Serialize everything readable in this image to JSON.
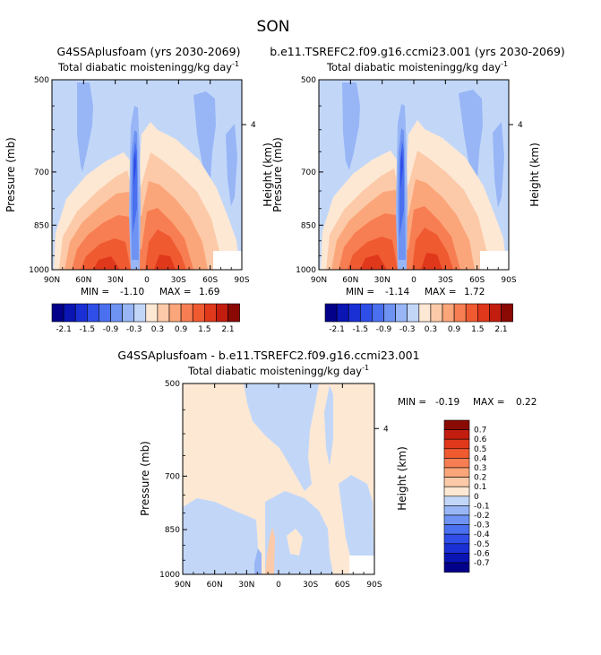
{
  "page_title": "SON",
  "chart_data": [
    {
      "type": "heatmap",
      "title": "G4SSAplusfoam (yrs 2030-2069)",
      "subtitle": "Total diabatic moistening",
      "units": "g/kg day",
      "units_exp": "-1",
      "ylabel": "Pressure (mb)",
      "ylabel_right": "Height (km)",
      "x_ticks": [
        "90N",
        "60N",
        "30N",
        "0",
        "30S",
        "60S",
        "90S"
      ],
      "y_ticks": [
        "500",
        "700",
        "850",
        "1000"
      ],
      "y_right_ticks": [
        "4"
      ],
      "ylim": [
        1000,
        500
      ],
      "min_label": "MIN =",
      "min_value": "-1.10",
      "max_label": "MAX =",
      "max_value": "1.69",
      "legend_placement": "bottom",
      "levels": [
        -2.1,
        -1.8,
        -1.5,
        -1.2,
        -0.9,
        -0.6,
        -0.3,
        0,
        0.3,
        0.6,
        0.9,
        1.2,
        1.5,
        1.8,
        2.1
      ],
      "legend_labels": [
        "-2.1",
        "-1.5",
        "-0.9",
        "-0.3",
        "0.3",
        "0.9",
        "1.5",
        "2.1"
      ],
      "colors": [
        "#03008a",
        "#0a15b4",
        "#1a30d4",
        "#2f4ee8",
        "#4a70ef",
        "#6e93f3",
        "#98b6f6",
        "#c2d7f8",
        "#fde8d4",
        "#fccaa8",
        "#fba67a",
        "#f77e52",
        "#f05a31",
        "#e0381b",
        "#c21d0f",
        "#8a0a03"
      ]
    },
    {
      "type": "heatmap",
      "title": "b.e11.TSREFC2.f09.g16.ccmi23.001 (yrs 2030-2069)",
      "subtitle": "Total diabatic moistening",
      "units": "g/kg day",
      "units_exp": "-1",
      "ylabel": "Pressure (mb)",
      "ylabel_right": "Height (km)",
      "x_ticks": [
        "90N",
        "60N",
        "30N",
        "0",
        "30S",
        "60S",
        "90S"
      ],
      "y_ticks": [
        "500",
        "700",
        "850",
        "1000"
      ],
      "y_right_ticks": [
        "4"
      ],
      "ylim": [
        1000,
        500
      ],
      "min_label": "MIN =",
      "min_value": "-1.14",
      "max_label": "MAX =",
      "max_value": "1.72",
      "legend_placement": "bottom",
      "levels": [
        -2.1,
        -1.8,
        -1.5,
        -1.2,
        -0.9,
        -0.6,
        -0.3,
        0,
        0.3,
        0.6,
        0.9,
        1.2,
        1.5,
        1.8,
        2.1
      ],
      "legend_labels": [
        "-2.1",
        "-1.5",
        "-0.9",
        "-0.3",
        "0.3",
        "0.9",
        "1.5",
        "2.1"
      ],
      "colors": [
        "#03008a",
        "#0a15b4",
        "#1a30d4",
        "#2f4ee8",
        "#4a70ef",
        "#6e93f3",
        "#98b6f6",
        "#c2d7f8",
        "#fde8d4",
        "#fccaa8",
        "#fba67a",
        "#f77e52",
        "#f05a31",
        "#e0381b",
        "#c21d0f",
        "#8a0a03"
      ]
    },
    {
      "type": "heatmap",
      "title": "G4SSAplusfoam - b.e11.TSREFC2.f09.g16.ccmi23.001",
      "subtitle": "Total diabatic moistening",
      "units": "g/kg day",
      "units_exp": "-1",
      "ylabel": "Pressure (mb)",
      "ylabel_right": "Height (km)",
      "x_ticks": [
        "90N",
        "60N",
        "30N",
        "0",
        "30S",
        "60S",
        "90S"
      ],
      "y_ticks": [
        "500",
        "700",
        "850",
        "1000"
      ],
      "y_right_ticks": [
        "4"
      ],
      "ylim": [
        1000,
        500
      ],
      "min_label": "MIN =",
      "min_value": "-0.19",
      "max_label": "MAX =",
      "max_value": "0.22",
      "legend_placement": "right",
      "legend_labels": [
        "0.7",
        "0.6",
        "0.5",
        "0.4",
        "0.3",
        "0.2",
        "0.1",
        "0",
        "-0.1",
        "-0.2",
        "-0.3",
        "-0.4",
        "-0.5",
        "-0.6",
        "-0.7"
      ],
      "colors": [
        "#8a0a03",
        "#c21d0f",
        "#e0381b",
        "#f05a31",
        "#f77e52",
        "#fba67a",
        "#fccaa8",
        "#fde8d4",
        "#c2d7f8",
        "#98b6f6",
        "#6e93f3",
        "#4a70ef",
        "#2f4ee8",
        "#1a30d4",
        "#0a15b4",
        "#03008a"
      ]
    }
  ]
}
